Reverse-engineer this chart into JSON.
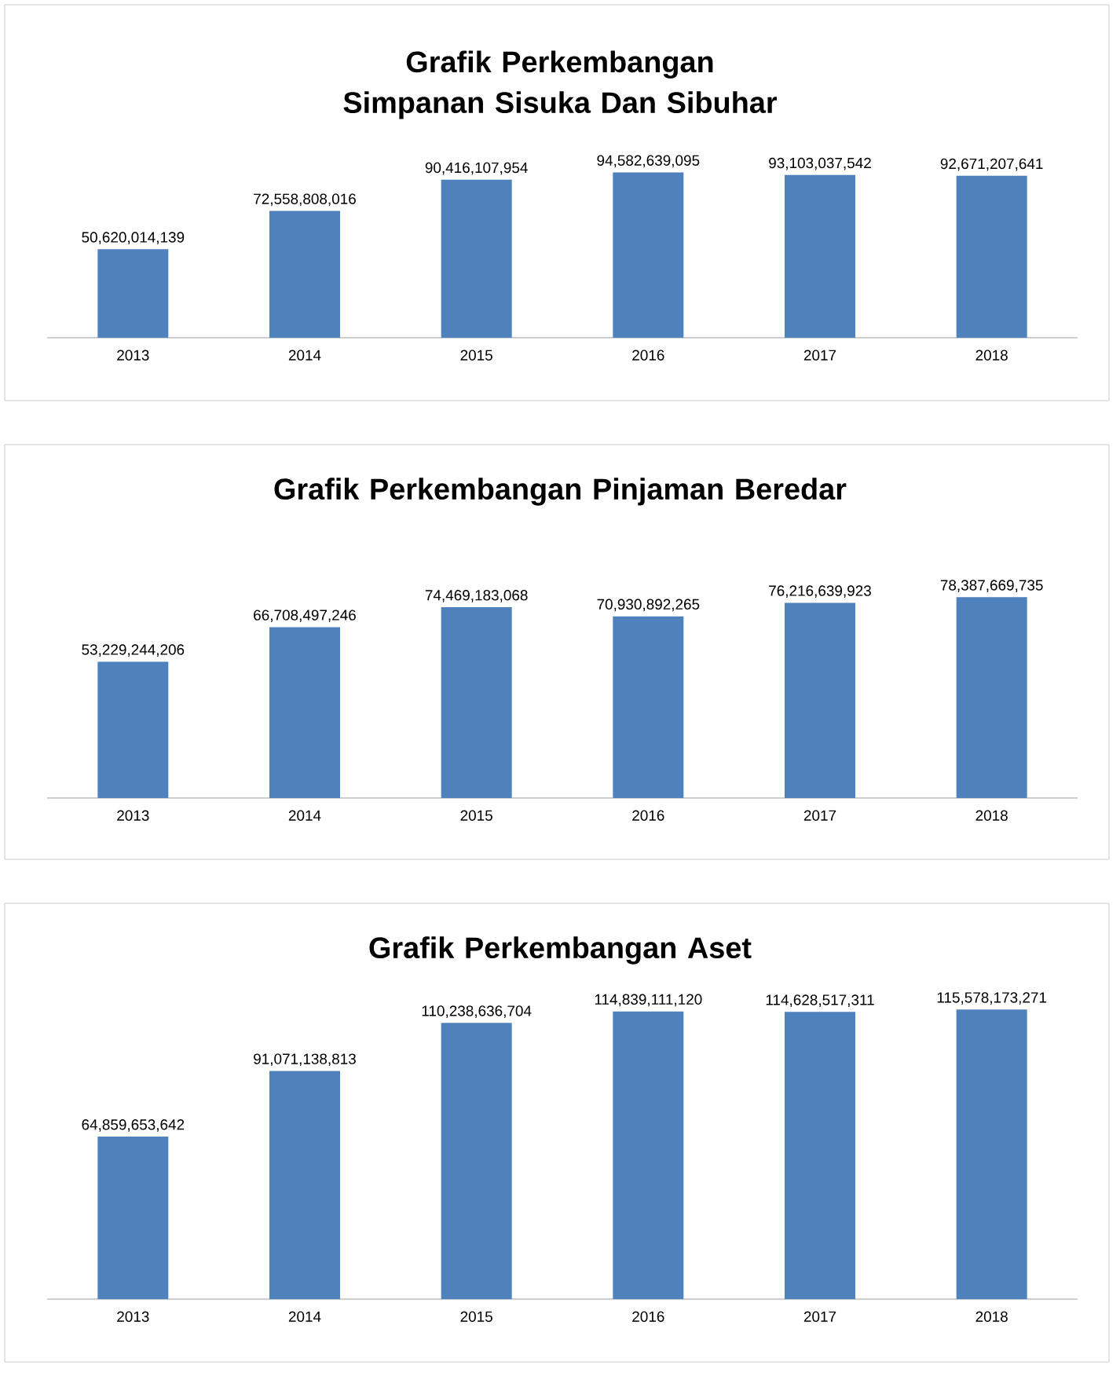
{
  "chart_data": [
    {
      "type": "bar",
      "title": "Grafik Perkembangan Simpanan Sisuka Dan Sibuhar",
      "categories": [
        "2013",
        "2014",
        "2015",
        "2016",
        "2017",
        "2018"
      ],
      "values": [
        50620014139,
        72558808016,
        90416107954,
        94582639095,
        93103037542,
        92671207641
      ],
      "value_labels": [
        "50,620,014,139",
        "72,558,808,016",
        "90,416,107,954",
        "94,582,639,095",
        "93,103,037,542",
        "92,671,207,641"
      ],
      "color": "#4f81bd"
    },
    {
      "type": "bar",
      "title": "Grafik Perkembangan Pinjaman Beredar",
      "categories": [
        "2013",
        "2014",
        "2015",
        "2016",
        "2017",
        "2018"
      ],
      "values": [
        53229244206,
        66708497246,
        74469183068,
        70930892265,
        76216639923,
        78387669735
      ],
      "value_labels": [
        "53,229,244,206",
        "66,708,497,246",
        "74,469,183,068",
        "70,930,892,265",
        "76,216,639,923",
        "78,387,669,735"
      ],
      "color": "#4f81bd"
    },
    {
      "type": "bar",
      "title": "Grafik Perkembangan Aset",
      "categories": [
        "2013",
        "2014",
        "2015",
        "2016",
        "2017",
        "2018"
      ],
      "values": [
        64859653642,
        91071138813,
        110238636704,
        114839111120,
        114628517311,
        115578173271
      ],
      "value_labels": [
        "64,859,653,642",
        "91,071,138,813",
        "110,238,636,704",
        "114,839,111,120",
        "114,628,517,311",
        "115,578,173,271"
      ],
      "color": "#4f81bd"
    }
  ]
}
